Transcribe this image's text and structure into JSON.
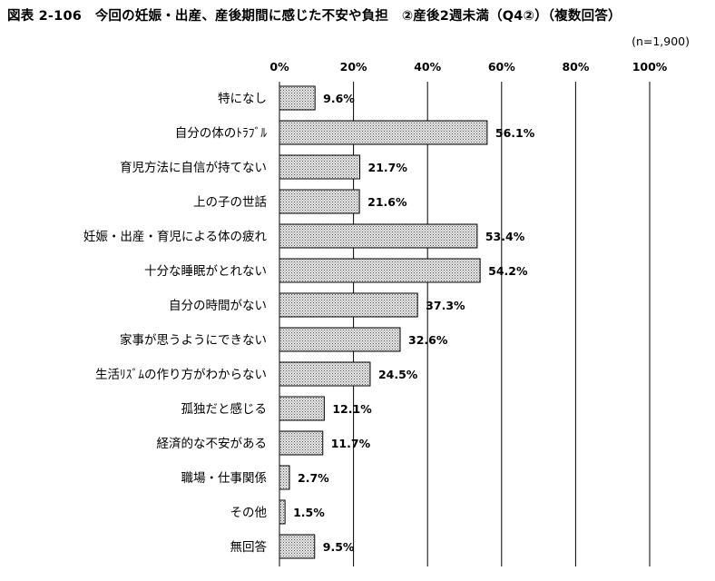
{
  "chart_data": {
    "type": "bar",
    "orientation": "horizontal",
    "title": "図表 2-106　今回の妊娠・出産、産後期間に感じた不安や負担　②産後2週未満（Q4②）（複数回答）",
    "sample_size": "(n=1,900)",
    "categories": [
      "特になし",
      "自分の体のﾄﾗﾌﾞﾙ",
      "育児方法に自信が持てない",
      "上の子の世話",
      "妊娠・出産・育児による体の疲れ",
      "十分な睡眠がとれない",
      "自分の時間がない",
      "家事が思うようにできない",
      "生活ﾘｽﾞﾑの作り方がわからない",
      "孤独だと感じる",
      "経済的な不安がある",
      "職場・仕事関係",
      "その他",
      "無回答"
    ],
    "values": [
      9.6,
      56.1,
      21.7,
      21.6,
      53.4,
      54.2,
      37.3,
      32.6,
      24.5,
      12.1,
      11.7,
      2.7,
      1.5,
      9.5
    ],
    "data_labels": [
      "9.6%",
      "56.1%",
      "21.7%",
      "21.6%",
      "53.4%",
      "54.2%",
      "37.3%",
      "32.6%",
      "24.5%",
      "12.1%",
      "11.7%",
      "2.7%",
      "1.5%",
      "9.5%"
    ],
    "xlim": [
      0,
      100
    ],
    "ticks": [
      0,
      20,
      40,
      60,
      80,
      100
    ],
    "tick_labels": [
      "0%",
      "20%",
      "40%",
      "60%",
      "80%",
      "100%"
    ],
    "grid": true,
    "bar_fill": "dotted-gray",
    "colors": {
      "bar_border": "#000000",
      "bar_pattern_dot": "#555555",
      "bar_background": "#e6e6e6",
      "grid": "#000000"
    }
  }
}
